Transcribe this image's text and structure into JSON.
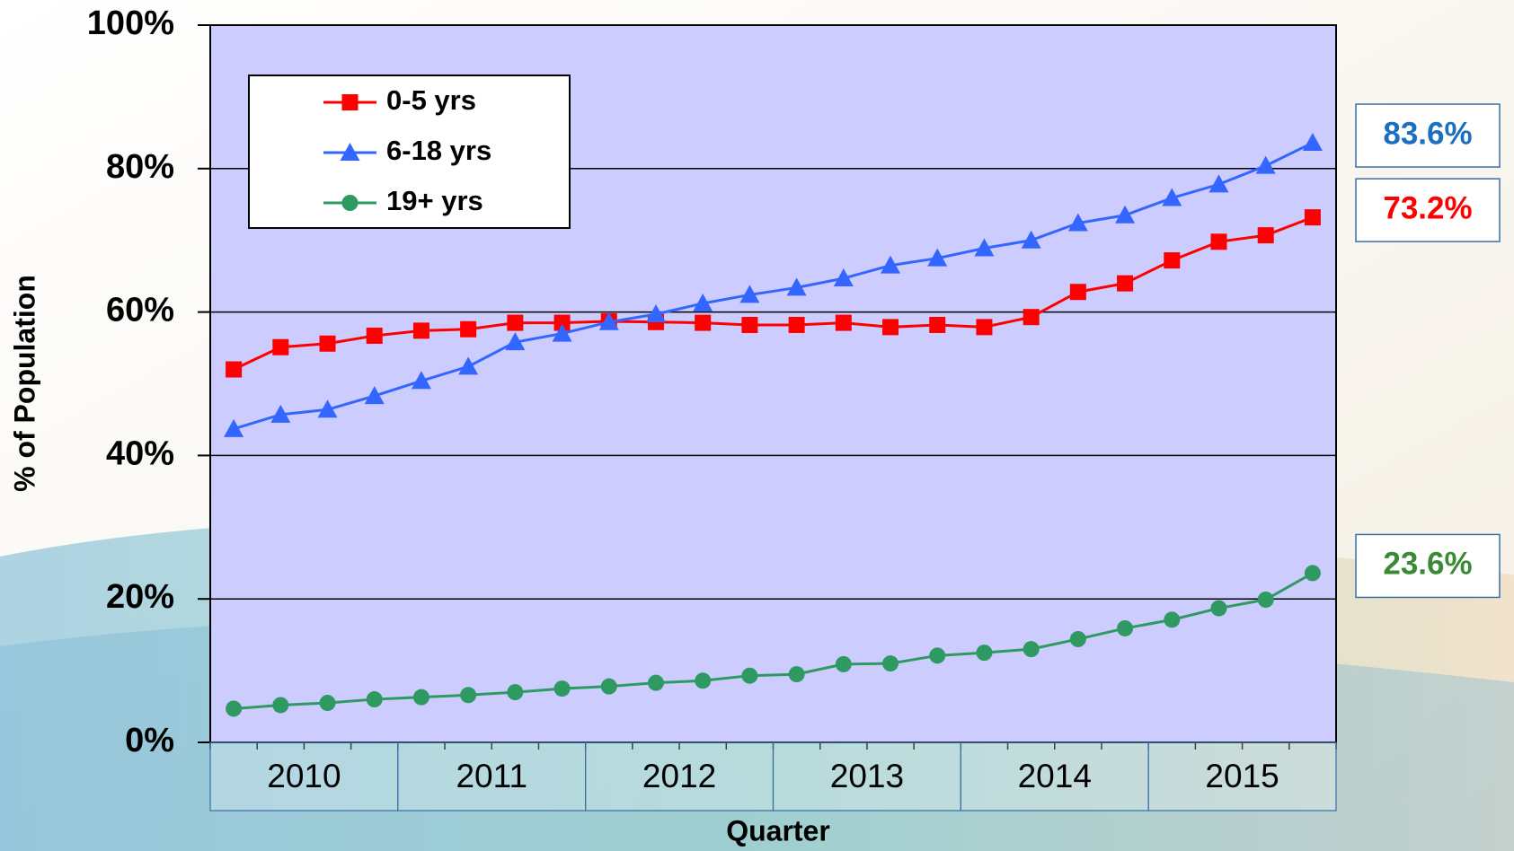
{
  "chart_data": {
    "type": "line",
    "y_label": "% of Population",
    "x_label": "Quarter",
    "x_groups": [
      "2010",
      "2011",
      "2012",
      "2013",
      "2014",
      "2015"
    ],
    "categories": [
      null,
      null,
      null,
      null,
      null,
      null,
      null,
      null,
      null,
      null,
      null,
      null,
      null,
      null,
      null,
      null,
      null,
      null,
      null,
      null,
      null,
      null,
      null,
      null
    ],
    "ylim": [
      0,
      100
    ],
    "yticks": [
      {
        "value": 0,
        "label": "0%"
      },
      {
        "value": 20,
        "label": "20%"
      },
      {
        "value": 40,
        "label": "40%"
      },
      {
        "value": 60,
        "label": "60%"
      },
      {
        "value": 80,
        "label": "80%"
      },
      {
        "value": 100,
        "label": "100%"
      }
    ],
    "grid": true,
    "legend": "upper left",
    "series": [
      {
        "name": "0-5 yrs",
        "color": "#ff0000",
        "label_color": "#ff0000",
        "marker": "square",
        "values": [
          52.0,
          55.1,
          55.6,
          56.7,
          57.4,
          57.6,
          58.5,
          58.5,
          58.7,
          58.6,
          58.5,
          58.2,
          58.2,
          58.5,
          57.9,
          58.2,
          57.9,
          59.3,
          62.8,
          64.0,
          67.2,
          69.8,
          70.7,
          73.2
        ],
        "value_labels": [
          null,
          null,
          null,
          null,
          null,
          null,
          null,
          null,
          null,
          null,
          null,
          null,
          null,
          null,
          null,
          null,
          null,
          null,
          null,
          null,
          null,
          null,
          null,
          "73.2%"
        ]
      },
      {
        "name": "6-18 yrs",
        "color": "#3366ff",
        "label_color": "#1a6fc0",
        "marker": "triangle",
        "values": [
          43.7,
          45.7,
          46.4,
          48.3,
          50.4,
          52.4,
          55.8,
          57.0,
          58.6,
          59.7,
          61.2,
          62.4,
          63.4,
          64.7,
          66.5,
          67.5,
          68.9,
          70.0,
          72.4,
          73.5,
          75.9,
          77.8,
          80.4,
          83.6
        ],
        "value_labels": [
          null,
          null,
          null,
          null,
          null,
          null,
          null,
          null,
          null,
          null,
          null,
          null,
          null,
          null,
          null,
          null,
          null,
          null,
          null,
          null,
          null,
          null,
          null,
          "83.6%"
        ]
      },
      {
        "name": "19+ yrs",
        "color": "#2e9a62",
        "label_color": "#3a8a35",
        "marker": "circle",
        "values": [
          4.7,
          5.2,
          5.5,
          6.0,
          6.3,
          6.6,
          7.0,
          7.5,
          7.8,
          8.3,
          8.6,
          9.3,
          9.5,
          10.9,
          11.0,
          12.1,
          12.5,
          13.0,
          14.4,
          15.9,
          17.1,
          18.7,
          19.9,
          23.6
        ],
        "value_labels": [
          null,
          null,
          null,
          null,
          null,
          null,
          null,
          null,
          null,
          null,
          null,
          null,
          null,
          null,
          null,
          null,
          null,
          null,
          null,
          null,
          null,
          null,
          null,
          "23.6%"
        ]
      }
    ]
  }
}
